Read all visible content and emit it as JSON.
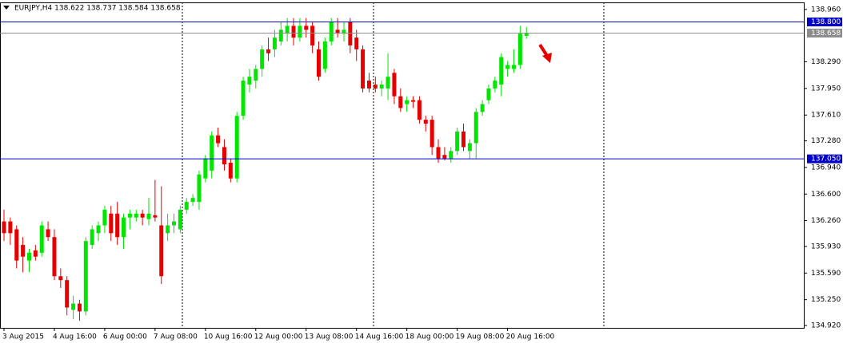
{
  "chart_data": {
    "type": "candlestick",
    "title": "EURJPY,H4  138.622 138.737 138.584 138.658",
    "categories": [
      "3 Aug 2015",
      null,
      null,
      null,
      null,
      null,
      null,
      null,
      "4 Aug 16:00",
      null,
      null,
      null,
      null,
      null,
      null,
      null,
      "6 Aug 00:00",
      null,
      null,
      null,
      null,
      null,
      null,
      null,
      "7 Aug 08:00",
      null,
      null,
      null,
      null,
      null,
      null,
      null,
      "10 Aug 16:00",
      null,
      null,
      null,
      null,
      null,
      null,
      null,
      "12 Aug 00:00",
      null,
      null,
      null,
      null,
      null,
      null,
      null,
      "13 Aug 08:00",
      null,
      null,
      null,
      null,
      null,
      null,
      null,
      "14 Aug 16:00",
      null,
      null,
      null,
      null,
      null,
      null,
      null,
      "18 Aug 00:00",
      null,
      null,
      null,
      null,
      null,
      null,
      null,
      "19 Aug 08:00",
      null,
      null,
      null,
      null,
      null,
      null,
      null,
      "20 Aug 16:00",
      null,
      null,
      null
    ],
    "open": [
      136.25,
      136.25,
      136.15,
      135.95,
      135.75,
      135.88,
      135.85,
      136.15,
      136.05,
      135.55,
      135.5,
      135.12,
      135.2,
      135.1,
      135.95,
      136.1,
      136.2,
      136.35,
      136.35,
      136.05,
      136.3,
      136.3,
      136.35,
      136.28,
      136.33,
      136.2,
      136.1,
      136.2,
      136.15,
      136.4,
      136.5,
      136.5,
      136.8,
      136.9,
      137.35,
      137.2,
      137.0,
      136.8,
      137.6,
      138.0,
      138.05,
      138.2,
      138.45,
      138.45,
      138.55,
      138.65,
      138.75,
      138.6,
      138.75,
      138.75,
      138.45,
      138.2,
      138.55,
      138.7,
      138.65,
      138.8,
      138.6,
      138.45,
      138.05,
      138.0,
      137.95,
      137.95,
      138.15,
      137.85,
      137.75,
      137.8,
      137.8,
      137.55,
      137.55,
      137.2,
      137.1,
      137.05,
      137.15,
      137.4,
      137.15,
      137.25,
      137.65,
      137.8,
      137.95,
      138.0,
      138.2,
      138.2,
      138.25,
      138.622
    ],
    "high": [
      136.4,
      136.3,
      136.2,
      136.05,
      135.9,
      135.95,
      136.25,
      136.25,
      136.15,
      135.65,
      135.55,
      135.3,
      135.25,
      136.05,
      136.2,
      136.25,
      136.45,
      136.45,
      136.5,
      136.35,
      136.4,
      136.4,
      136.4,
      136.55,
      136.78,
      136.7,
      136.35,
      136.35,
      136.45,
      136.55,
      136.6,
      136.9,
      137.1,
      137.4,
      137.45,
      137.3,
      137.05,
      137.65,
      138.1,
      138.2,
      138.25,
      138.5,
      138.6,
      138.7,
      138.8,
      138.85,
      138.85,
      138.85,
      138.85,
      138.8,
      138.55,
      138.6,
      138.85,
      138.85,
      138.8,
      138.85,
      138.7,
      138.5,
      138.15,
      138.1,
      138.05,
      138.4,
      138.2,
      137.95,
      137.85,
      137.85,
      137.85,
      137.6,
      137.6,
      137.3,
      137.2,
      137.2,
      137.45,
      137.5,
      137.3,
      137.7,
      137.8,
      138.0,
      138.1,
      138.4,
      138.3,
      138.45,
      138.75,
      138.737
    ],
    "low": [
      136.0,
      135.95,
      135.65,
      135.6,
      135.6,
      135.75,
      135.8,
      136.0,
      135.5,
      135.4,
      135.05,
      135.0,
      134.98,
      135.05,
      135.9,
      136.0,
      136.1,
      136.0,
      135.95,
      135.9,
      136.15,
      136.25,
      136.2,
      136.2,
      136.25,
      135.45,
      136.0,
      136.1,
      136.1,
      136.35,
      136.45,
      136.4,
      136.75,
      136.8,
      137.2,
      136.9,
      136.75,
      136.75,
      137.55,
      137.9,
      137.95,
      138.1,
      138.3,
      138.35,
      138.5,
      138.55,
      138.5,
      138.55,
      138.6,
      138.4,
      138.05,
      138.15,
      138.5,
      138.6,
      138.55,
      138.4,
      138.3,
      137.9,
      137.9,
      137.9,
      137.85,
      137.8,
      137.75,
      137.65,
      137.65,
      137.7,
      137.5,
      137.4,
      137.1,
      137.0,
      137.03,
      137.0,
      137.1,
      137.15,
      137.05,
      137.05,
      137.6,
      137.75,
      137.9,
      137.85,
      138.1,
      138.15,
      138.2,
      138.584
    ],
    "close": [
      136.1,
      136.1,
      135.75,
      135.8,
      135.85,
      135.8,
      136.2,
      136.05,
      135.55,
      135.5,
      135.15,
      135.2,
      135.1,
      136.0,
      136.15,
      136.2,
      136.4,
      136.1,
      136.05,
      136.3,
      136.35,
      136.35,
      136.3,
      136.35,
      136.3,
      135.55,
      136.2,
      136.25,
      136.4,
      136.5,
      136.55,
      136.85,
      137.05,
      137.35,
      137.25,
      136.98,
      136.8,
      137.6,
      138.05,
      138.1,
      138.2,
      138.45,
      138.4,
      138.6,
      138.7,
      138.75,
      138.6,
      138.75,
      138.7,
      138.5,
      138.1,
      138.55,
      138.8,
      138.65,
      138.7,
      138.5,
      138.45,
      137.95,
      137.95,
      137.95,
      138.0,
      138.1,
      137.85,
      137.7,
      137.8,
      137.78,
      137.55,
      137.5,
      137.2,
      137.05,
      137.05,
      137.15,
      137.4,
      137.2,
      137.25,
      137.65,
      137.75,
      137.95,
      138.05,
      138.35,
      138.25,
      138.25,
      138.65,
      138.658
    ],
    "up_color": "#00e600",
    "down_color": "#e60000",
    "ylim": [
      134.89,
      139.05
    ],
    "yticks": [
      {
        "value": 138.96,
        "label": "138.960"
      },
      {
        "value": 138.29,
        "label": "138.290"
      },
      {
        "value": 137.95,
        "label": "137.950"
      },
      {
        "value": 137.61,
        "label": "137.610"
      },
      {
        "value": 137.28,
        "label": "137.280"
      },
      {
        "value": 136.94,
        "label": "136.940"
      },
      {
        "value": 136.6,
        "label": "136.600"
      },
      {
        "value": 136.26,
        "label": "136.260"
      },
      {
        "value": 135.93,
        "label": "135.930"
      },
      {
        "value": 135.59,
        "label": "135.590"
      },
      {
        "value": 135.25,
        "label": "135.250"
      },
      {
        "value": 134.92,
        "label": "134.920"
      }
    ],
    "hlines": [
      {
        "value": 138.8,
        "label": "138.800",
        "color": "#0000c8"
      },
      {
        "value": 137.05,
        "label": "137.050",
        "color": "#0000c8"
      },
      {
        "value": 138.658,
        "label": "138.658",
        "color": "#8c8c8c"
      }
    ]
  }
}
